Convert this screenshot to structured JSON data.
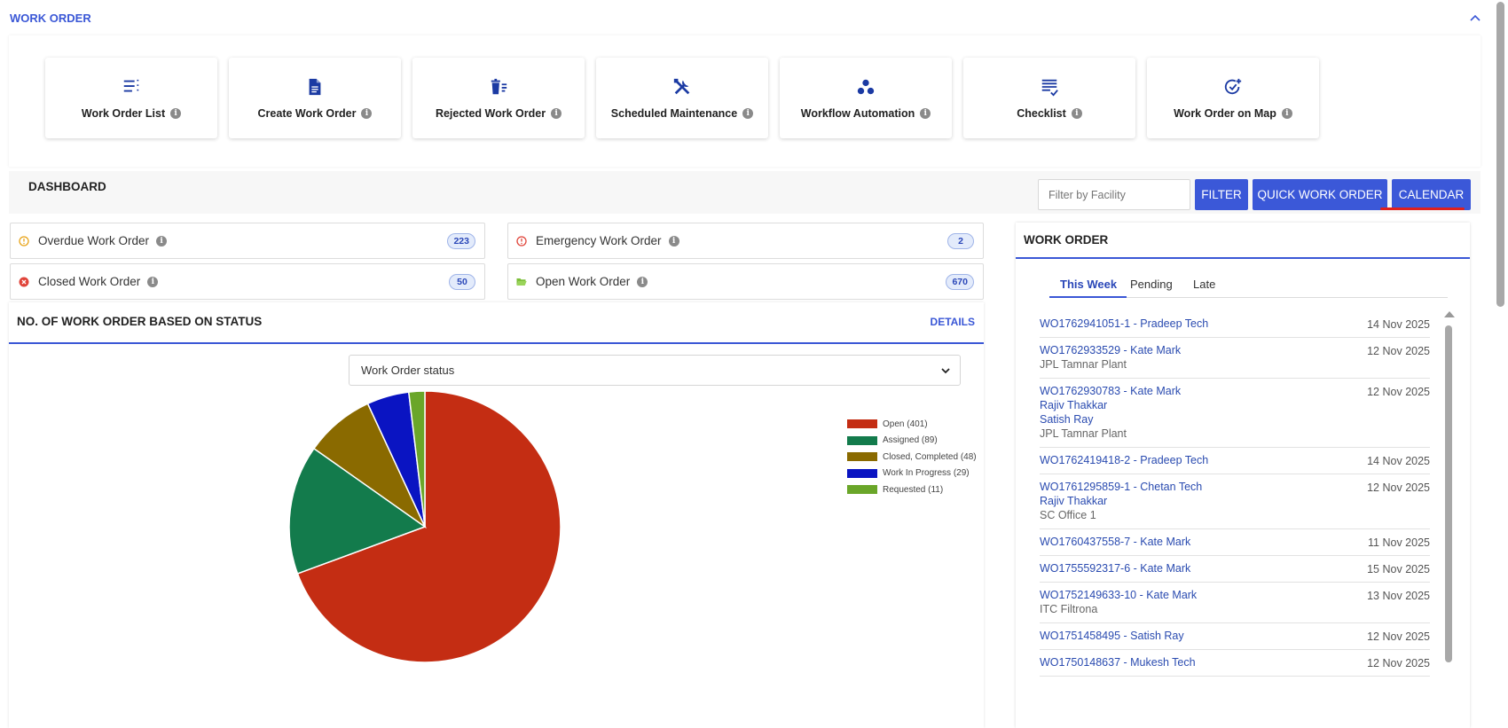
{
  "header": {
    "title": "WORK ORDER"
  },
  "tiles": [
    {
      "label": "Work Order List",
      "icon": "list-icon"
    },
    {
      "label": "Create Work Order",
      "icon": "document-icon"
    },
    {
      "label": "Rejected Work Order",
      "icon": "trash-list-icon"
    },
    {
      "label": "Scheduled Maintenance",
      "icon": "tools-icon"
    },
    {
      "label": "Workflow Automation",
      "icon": "workflow-dots-icon"
    },
    {
      "label": "Checklist",
      "icon": "checklist-icon"
    },
    {
      "label": "Work Order on Map",
      "icon": "check-add-icon"
    }
  ],
  "dashboard": {
    "title": "DASHBOARD",
    "filter_placeholder": "Filter by Facility",
    "filter_button": "FILTER",
    "quick_button": "QUICK WORK ORDER",
    "calendar_button": "CALENDAR"
  },
  "stats": [
    {
      "label": "Overdue Work Order",
      "count": "223",
      "icon": "clock-warning-icon",
      "color": "#e8a317"
    },
    {
      "label": "Emergency Work Order",
      "count": "2",
      "icon": "alert-circle-icon",
      "color": "#e0443a"
    },
    {
      "label": "Closed Work Order",
      "count": "50",
      "icon": "x-circle-icon",
      "color": "#e0443a"
    },
    {
      "label": "Open Work Order",
      "count": "670",
      "icon": "folder-open-icon",
      "color": "#7cbf3a"
    }
  ],
  "status_chart": {
    "title": "NO. OF WORK ORDER BASED ON STATUS",
    "details_label": "DETAILS",
    "select_value": "Work Order status"
  },
  "chart_data": {
    "type": "pie",
    "title": "",
    "categories": [
      "Open",
      "Assigned",
      "Closed, Completed",
      "Work In Progress",
      "Requested"
    ],
    "values": [
      401,
      89,
      48,
      29,
      11
    ],
    "legend_labels": [
      "Open (401)",
      "Assigned (89)",
      "Closed, Completed (48)",
      "Work In Progress (29)",
      "Requested (11)"
    ],
    "colors": [
      "#c42d13",
      "#137b4c",
      "#8a6a00",
      "#0a14c2",
      "#6aa629"
    ],
    "legend_position": "top-right"
  },
  "work_orders": {
    "title": "WORK ORDER",
    "tabs": [
      "This Week",
      "Pending",
      "Late"
    ],
    "items": [
      {
        "lines": [
          "WO1762941051-1 - Pradeep Tech"
        ],
        "sub": [],
        "date": "14 Nov 2025"
      },
      {
        "lines": [
          "WO1762933529 - Kate Mark"
        ],
        "sub": [
          "JPL Tamnar Plant"
        ],
        "date": "12 Nov 2025"
      },
      {
        "lines": [
          "WO1762930783 - Kate Mark",
          "Rajiv Thakkar",
          "Satish Ray"
        ],
        "sub": [
          "JPL Tamnar Plant"
        ],
        "date": "12 Nov 2025"
      },
      {
        "lines": [
          "WO1762419418-2 - Pradeep Tech"
        ],
        "sub": [],
        "date": "14 Nov 2025"
      },
      {
        "lines": [
          "WO1761295859-1 - Chetan Tech",
          "Rajiv Thakkar"
        ],
        "sub": [
          "SC Office 1"
        ],
        "date": "12 Nov 2025"
      },
      {
        "lines": [
          "WO1760437558-7 - Kate Mark"
        ],
        "sub": [],
        "date": "11 Nov 2025"
      },
      {
        "lines": [
          "WO1755592317-6 - Kate Mark"
        ],
        "sub": [],
        "date": "15 Nov 2025"
      },
      {
        "lines": [
          "WO1752149633-10 - Kate Mark"
        ],
        "sub": [
          "ITC Filtrona"
        ],
        "date": "13 Nov 2025"
      },
      {
        "lines": [
          "WO1751458495 - Satish Ray"
        ],
        "sub": [],
        "date": "12 Nov 2025"
      },
      {
        "lines": [
          "WO1750148637 - Mukesh Tech"
        ],
        "sub": [],
        "date": "12 Nov 2025"
      }
    ]
  }
}
